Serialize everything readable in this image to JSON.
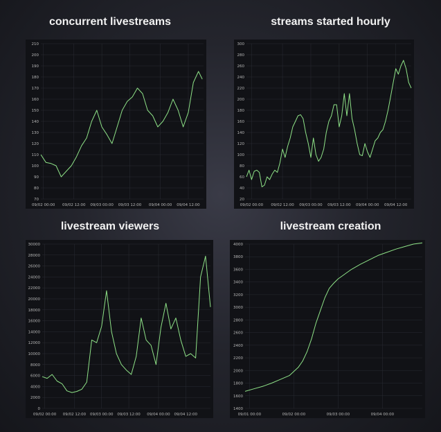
{
  "colors": {
    "line": "#8fe388",
    "background": "#111216",
    "grid": "#2a2c33"
  },
  "chart_data": [
    {
      "type": "line",
      "title": "concurrent livestreams",
      "xlabel": "",
      "ylabel": "",
      "ylim": [
        70,
        210
      ],
      "y_ticks": [
        70,
        80,
        90,
        100,
        110,
        120,
        130,
        140,
        150,
        160,
        170,
        180,
        190,
        200,
        210
      ],
      "x_ticks": [
        "09/02 00:00",
        "09/02 12:00",
        "09/03 00:00",
        "09/03 12:00",
        "09/04 00:00",
        "09/04 12:00"
      ],
      "grid": true,
      "series": [
        {
          "x": [
            0,
            2,
            4,
            6,
            8,
            10,
            12,
            14,
            16,
            18,
            20,
            22,
            24,
            26,
            28,
            30,
            32,
            34,
            36,
            38,
            40,
            42,
            44,
            46,
            48,
            50,
            52,
            54,
            56,
            58,
            60,
            62,
            63.5
          ],
          "values": [
            110,
            103,
            102,
            100,
            90,
            95,
            100,
            108,
            118,
            125,
            140,
            150,
            135,
            128,
            120,
            135,
            150,
            158,
            162,
            170,
            165,
            150,
            145,
            135,
            140,
            148,
            160,
            150,
            135,
            148,
            175,
            185,
            178
          ]
        }
      ]
    },
    {
      "type": "line",
      "title": "streams started hourly",
      "xlabel": "",
      "ylabel": "",
      "ylim": [
        20,
        300
      ],
      "y_ticks": [
        20,
        40,
        60,
        80,
        100,
        120,
        140,
        160,
        180,
        200,
        220,
        240,
        260,
        280,
        300
      ],
      "x_ticks": [
        "09/02 00:00",
        "09/02 12:00",
        "09/03 00:00",
        "09/03 12:00",
        "09/04 00:00",
        "09/04 12:00"
      ],
      "grid": true,
      "series": [
        {
          "x": [
            0,
            1,
            2,
            3,
            4,
            5,
            6,
            7,
            8,
            9,
            10,
            11,
            12,
            13,
            14,
            15,
            16,
            17,
            18,
            19,
            20,
            21,
            22,
            23,
            24,
            25,
            26,
            27,
            28,
            29,
            30,
            31,
            32,
            33,
            34,
            35,
            36,
            37,
            38,
            39,
            40,
            41,
            42,
            43,
            44,
            45,
            46,
            47,
            48,
            49,
            50,
            51,
            52,
            53,
            54,
            55,
            56,
            57,
            58,
            59,
            60,
            61,
            62,
            63,
            64
          ],
          "values": [
            60,
            72,
            55,
            70,
            72,
            68,
            42,
            45,
            60,
            55,
            65,
            72,
            68,
            85,
            110,
            95,
            115,
            130,
            150,
            160,
            170,
            172,
            165,
            140,
            120,
            95,
            130,
            100,
            88,
            95,
            110,
            140,
            160,
            170,
            190,
            190,
            150,
            170,
            210,
            170,
            210,
            165,
            145,
            120,
            100,
            98,
            120,
            105,
            95,
            110,
            125,
            130,
            140,
            145,
            160,
            180,
            205,
            230,
            255,
            245,
            260,
            270,
            255,
            230,
            220
          ]
        }
      ]
    },
    {
      "type": "line",
      "title": "livestream viewers",
      "xlabel": "",
      "ylabel": "",
      "ylim": [
        0,
        30000
      ],
      "y_ticks": [
        0,
        2000,
        4000,
        6000,
        8000,
        10000,
        12000,
        14000,
        16000,
        18000,
        20000,
        22000,
        24000,
        26000,
        28000,
        30000
      ],
      "x_ticks": [
        "09/02 00:00",
        "09/02 12:00",
        "09/03 00:00",
        "09/03 12:00",
        "09/04 00:00",
        "09/04 12:00"
      ],
      "grid": true,
      "series": [
        {
          "x": [
            0,
            2,
            4,
            6,
            8,
            10,
            12,
            14,
            16,
            18,
            20,
            22,
            24,
            26,
            28,
            30,
            32,
            34,
            36,
            38,
            40,
            42,
            44,
            46,
            48,
            50,
            52,
            54,
            56,
            58,
            60,
            62,
            64,
            66,
            68
          ],
          "values": [
            5800,
            5500,
            6200,
            5000,
            4500,
            3200,
            2900,
            3100,
            3500,
            4800,
            12500,
            12000,
            15000,
            21500,
            14000,
            10000,
            8000,
            7000,
            6200,
            9500,
            16500,
            12500,
            11500,
            8000,
            14800,
            19200,
            14500,
            16500,
            12500,
            9500,
            10000,
            9200,
            24000,
            27800,
            18500
          ]
        }
      ]
    },
    {
      "type": "line",
      "title": "livestream creation",
      "xlabel": "",
      "ylabel": "",
      "ylim": [
        1400,
        4000
      ],
      "y_ticks": [
        1400,
        1600,
        1800,
        2000,
        2200,
        2400,
        2600,
        2800,
        3000,
        3200,
        3400,
        3600,
        3800,
        4000
      ],
      "x_ticks": [
        "09/01 00:00",
        "09/02 00:00",
        "09/03 00:00",
        "09/04 00:00"
      ],
      "grid": true,
      "series": [
        {
          "x": [
            0,
            4,
            8,
            12,
            16,
            20,
            24,
            26,
            28,
            30,
            32,
            34,
            36,
            38,
            40,
            42,
            44,
            46,
            48,
            52,
            56,
            60,
            64,
            68,
            72,
            76,
            80
          ],
          "values": [
            1670,
            1710,
            1750,
            1800,
            1860,
            1920,
            2050,
            2150,
            2300,
            2500,
            2750,
            2950,
            3150,
            3300,
            3380,
            3450,
            3500,
            3550,
            3600,
            3680,
            3750,
            3820,
            3870,
            3920,
            3960,
            4000,
            4020
          ]
        }
      ]
    }
  ]
}
